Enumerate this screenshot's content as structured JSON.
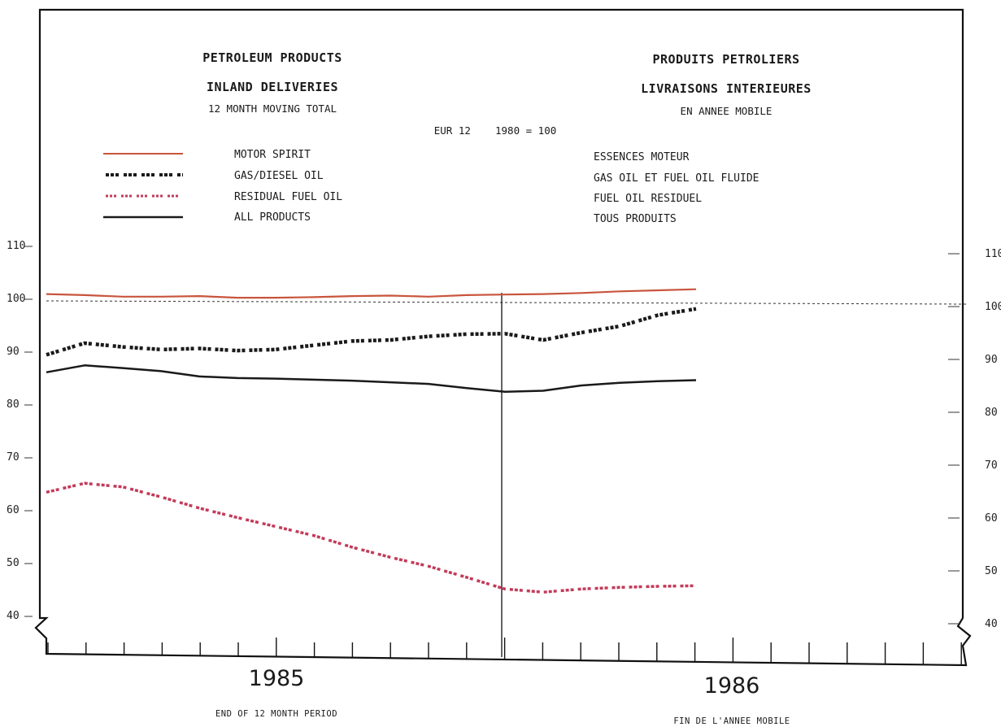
{
  "header": {
    "title_en": "PETROLEUM PRODUCTS",
    "subtitle_en": "INLAND DELIVERIES",
    "note_en": "12 MONTH MOVING TOTAL",
    "title_fr": "PRODUITS PETROLIERS",
    "subtitle_fr": "LIVRAISONS INTERIEURES",
    "note_fr": "EN ANNEE MOBILE",
    "base": "EUR 12    1980 = 100"
  },
  "legend": [
    {
      "en": "MOTOR SPIRIT",
      "fr": "ESSENCES MOTEUR",
      "color": "#c8553d",
      "style": "solid"
    },
    {
      "en": "GAS/DIESEL OIL",
      "fr": "GAS OIL ET FUEL OIL FLUIDE",
      "color": "#1a1a1a",
      "style": "dotted"
    },
    {
      "en": "RESIDUAL FUEL OIL",
      "fr": "FUEL OIL RESIDUEL",
      "color": "#c23b5a",
      "style": "dotted"
    },
    {
      "en": "ALL PRODUCTS",
      "fr": "TOUS PRODUITS",
      "color": "#1a1a1a",
      "style": "solid"
    }
  ],
  "footer": {
    "en": "END OF 12 MONTH PERIOD",
    "fr": "FIN DE L'ANNEE MOBILE"
  },
  "chart_data": {
    "type": "line",
    "title": "PETROLEUM PRODUCTS / PRODUITS PETROLIERS",
    "ylim": [
      35,
      110
    ],
    "yticks": [
      40,
      50,
      60,
      70,
      80,
      90,
      100,
      110
    ],
    "year_labels": [
      "1985",
      "1986"
    ],
    "x": [
      "1984-07",
      "1984-08",
      "1984-09",
      "1984-10",
      "1984-11",
      "1984-12",
      "1985-01",
      "1985-02",
      "1985-03",
      "1985-04",
      "1985-05",
      "1985-06",
      "1985-07",
      "1985-08",
      "1985-09",
      "1985-10",
      "1985-11",
      "1985-12"
    ],
    "reference_line": 100,
    "grid": false,
    "series": [
      {
        "name": "MOTOR SPIRIT",
        "color": "#c8553d",
        "style": "solid",
        "values": [
          101.3,
          101.1,
          100.8,
          100.8,
          100.9,
          100.6,
          100.6,
          100.7,
          100.9,
          101.0,
          100.8,
          101.1,
          101.2,
          101.3,
          101.5,
          101.8,
          102.0,
          102.2
        ]
      },
      {
        "name": "GAS/DIESEL OIL",
        "color": "#1a1a1a",
        "style": "dotted",
        "values": [
          89.8,
          92.0,
          91.3,
          90.8,
          91.0,
          90.6,
          90.8,
          91.6,
          92.4,
          92.6,
          93.3,
          93.7,
          93.8,
          92.6,
          94.0,
          95.2,
          97.3,
          98.5
        ]
      },
      {
        "name": "RESIDUAL FUEL OIL",
        "color": "#c23b5a",
        "style": "dotted",
        "values": [
          63.8,
          65.5,
          64.8,
          62.9,
          60.8,
          59.0,
          57.3,
          55.6,
          53.4,
          51.5,
          49.8,
          47.7,
          45.5,
          44.9,
          45.5,
          45.8,
          46.0,
          46.1
        ]
      },
      {
        "name": "ALL PRODUCTS",
        "color": "#1a1a1a",
        "style": "solid",
        "values": [
          86.5,
          87.8,
          87.3,
          86.7,
          85.7,
          85.4,
          85.3,
          85.1,
          84.9,
          84.6,
          84.3,
          83.5,
          82.8,
          83.0,
          84.0,
          84.5,
          84.8,
          85.0
        ]
      }
    ]
  }
}
